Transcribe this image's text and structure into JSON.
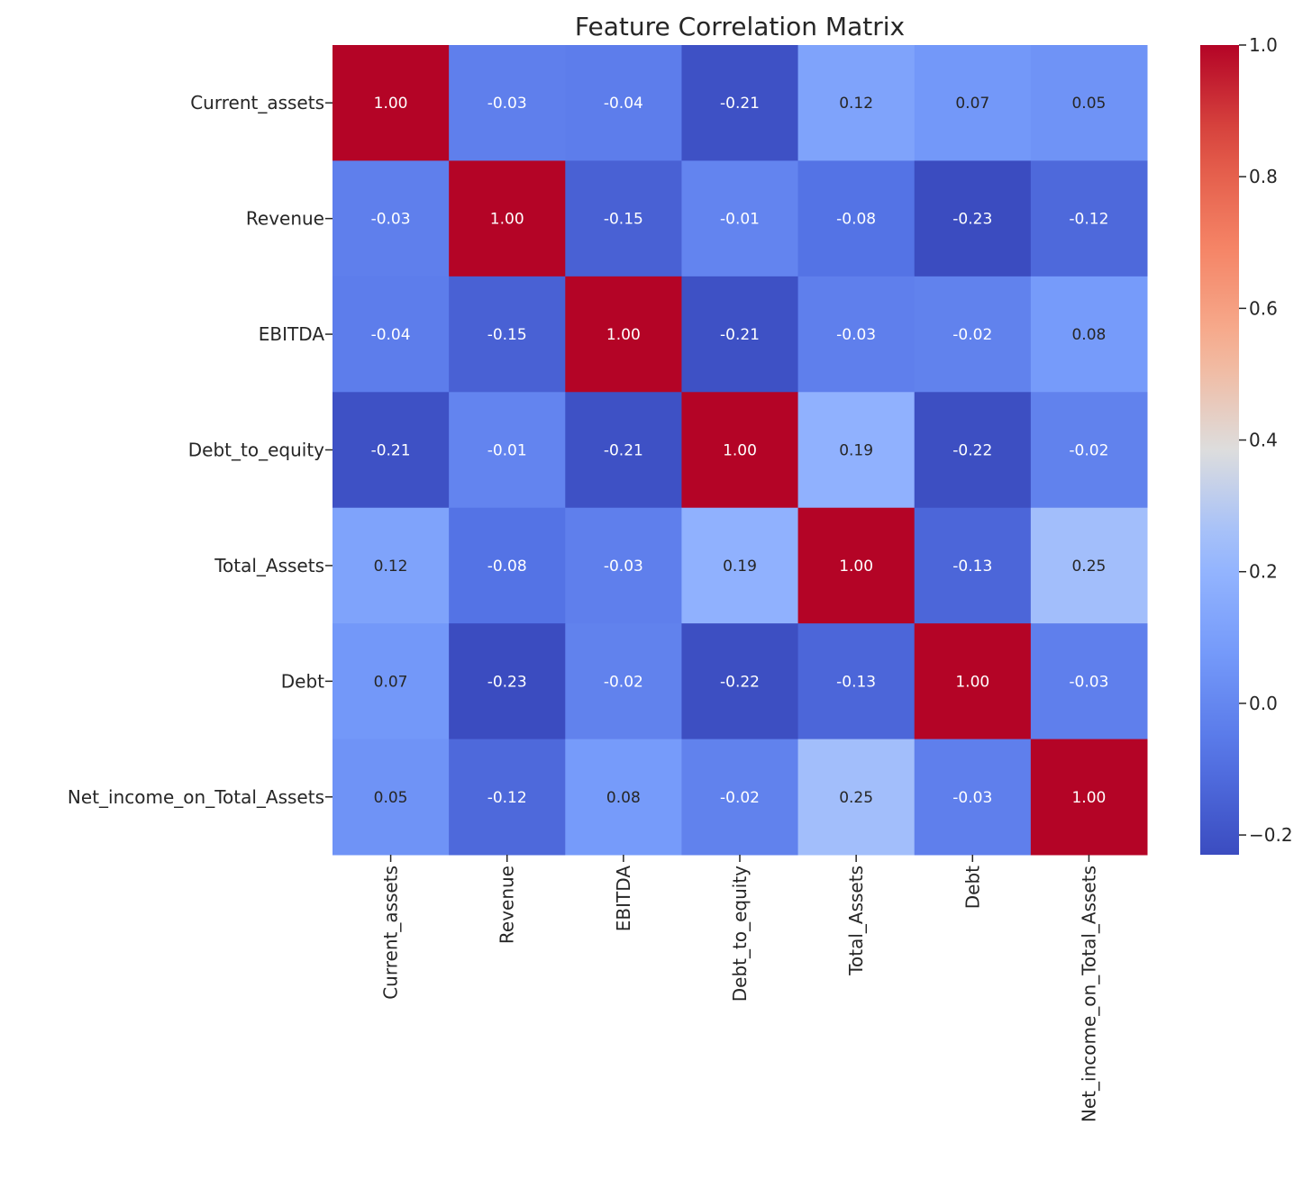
{
  "chart_data": {
    "type": "heatmap",
    "title": "Feature Correlation Matrix",
    "xlabel": "",
    "ylabel": "",
    "labels": [
      "Current_assets",
      "Revenue",
      "EBITDA",
      "Debt_to_equity",
      "Total_Assets",
      "Debt",
      "Net_income_on_Total_Assets"
    ],
    "values": [
      [
        1.0,
        -0.03,
        -0.04,
        -0.21,
        0.12,
        0.07,
        0.05
      ],
      [
        -0.03,
        1.0,
        -0.15,
        -0.01,
        -0.08,
        -0.23,
        -0.12
      ],
      [
        -0.04,
        -0.15,
        1.0,
        -0.21,
        -0.03,
        -0.02,
        0.08
      ],
      [
        -0.21,
        -0.01,
        -0.21,
        1.0,
        0.19,
        -0.22,
        -0.02
      ],
      [
        0.12,
        -0.08,
        -0.03,
        0.19,
        1.0,
        -0.13,
        0.25
      ],
      [
        0.07,
        -0.23,
        -0.02,
        -0.22,
        -0.13,
        1.0,
        -0.03
      ],
      [
        0.05,
        -0.12,
        0.08,
        -0.02,
        0.25,
        -0.03,
        1.0
      ]
    ],
    "value_labels": [
      [
        "1.00",
        "-0.03",
        "-0.04",
        "-0.21",
        "0.12",
        "0.07",
        "0.05"
      ],
      [
        "-0.03",
        "1.00",
        "-0.15",
        "-0.01",
        "-0.08",
        "-0.23",
        "-0.12"
      ],
      [
        "-0.04",
        "-0.15",
        "1.00",
        "-0.21",
        "-0.03",
        "-0.02",
        "0.08"
      ],
      [
        "-0.21",
        "-0.01",
        "-0.21",
        "1.00",
        "0.19",
        "-0.22",
        "-0.02"
      ],
      [
        "0.12",
        "-0.08",
        "-0.03",
        "0.19",
        "1.00",
        "-0.13",
        "0.25"
      ],
      [
        "0.07",
        "-0.23",
        "-0.02",
        "-0.22",
        "-0.13",
        "1.00",
        "-0.03"
      ],
      [
        "0.05",
        "-0.12",
        "0.08",
        "-0.02",
        "0.25",
        "-0.03",
        "1.00"
      ]
    ],
    "colormap": "coolwarm",
    "colorbar": {
      "vmin": -0.23,
      "vmax": 1.0,
      "ticks": [
        1.0,
        0.8,
        0.6,
        0.4,
        0.2,
        0.0,
        -0.2
      ],
      "tick_labels": [
        "1.0",
        "0.8",
        "0.6",
        "0.4",
        "0.2",
        "0.0",
        "−0.2"
      ],
      "placement": "right"
    },
    "annotations": true,
    "grid": false
  }
}
